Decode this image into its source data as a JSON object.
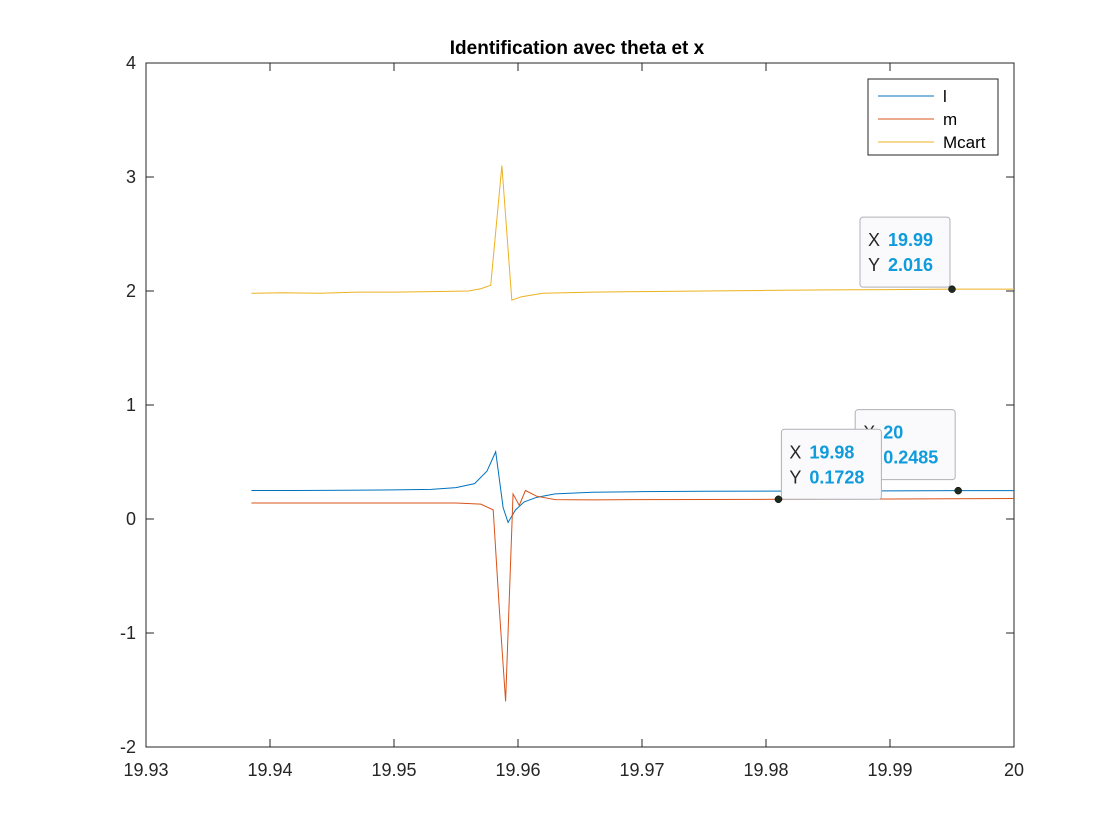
{
  "chart_data": {
    "type": "line",
    "title": "Identification avec theta et x",
    "xlabel": "",
    "ylabel": "",
    "xlim": [
      19.93,
      20
    ],
    "ylim": [
      -2,
      4
    ],
    "x_ticks": [
      "19.93",
      "19.94",
      "19.95",
      "19.96",
      "19.97",
      "19.98",
      "19.99",
      "20"
    ],
    "y_ticks": [
      "-2",
      "-1",
      "0",
      "1",
      "2",
      "3",
      "4"
    ],
    "grid": false,
    "legend_position": "top-right",
    "series": [
      {
        "name": "l",
        "color": "#0072BD",
        "points": [
          [
            19.9385,
            0.25
          ],
          [
            19.942,
            0.25
          ],
          [
            19.946,
            0.252
          ],
          [
            19.95,
            0.255
          ],
          [
            19.953,
            0.26
          ],
          [
            19.955,
            0.275
          ],
          [
            19.9565,
            0.31
          ],
          [
            19.9575,
            0.42
          ],
          [
            19.9582,
            0.59
          ],
          [
            19.9588,
            0.1
          ],
          [
            19.9592,
            -0.03
          ],
          [
            19.9598,
            0.08
          ],
          [
            19.9605,
            0.15
          ],
          [
            19.9615,
            0.19
          ],
          [
            19.963,
            0.22
          ],
          [
            19.966,
            0.235
          ],
          [
            19.97,
            0.24
          ],
          [
            19.975,
            0.243
          ],
          [
            19.98,
            0.245
          ],
          [
            19.985,
            0.246
          ],
          [
            19.99,
            0.247
          ],
          [
            19.9955,
            0.2485
          ],
          [
            20.0,
            0.2485
          ]
        ]
      },
      {
        "name": "m",
        "color": "#D95319",
        "points": [
          [
            19.9385,
            0.14
          ],
          [
            19.945,
            0.14
          ],
          [
            19.95,
            0.14
          ],
          [
            19.955,
            0.14
          ],
          [
            19.957,
            0.13
          ],
          [
            19.958,
            0.08
          ],
          [
            19.9585,
            -0.8
          ],
          [
            19.959,
            -1.6
          ],
          [
            19.9596,
            0.22
          ],
          [
            19.9601,
            0.12
          ],
          [
            19.9606,
            0.25
          ],
          [
            19.9615,
            0.2
          ],
          [
            19.963,
            0.17
          ],
          [
            19.966,
            0.168
          ],
          [
            19.97,
            0.17
          ],
          [
            19.975,
            0.171
          ],
          [
            19.981,
            0.1728
          ],
          [
            19.985,
            0.174
          ],
          [
            19.99,
            0.176
          ],
          [
            19.995,
            0.178
          ],
          [
            20.0,
            0.18
          ]
        ]
      },
      {
        "name": "Mcart",
        "color": "#EDB120",
        "points": [
          [
            19.9385,
            1.98
          ],
          [
            19.941,
            1.985
          ],
          [
            19.944,
            1.98
          ],
          [
            19.947,
            1.99
          ],
          [
            19.95,
            1.99
          ],
          [
            19.953,
            1.995
          ],
          [
            19.956,
            2.0
          ],
          [
            19.957,
            2.02
          ],
          [
            19.9578,
            2.05
          ],
          [
            19.9587,
            3.1
          ],
          [
            19.9595,
            1.92
          ],
          [
            19.9603,
            1.95
          ],
          [
            19.962,
            1.98
          ],
          [
            19.966,
            1.99
          ],
          [
            19.97,
            1.995
          ],
          [
            19.975,
            2.0
          ],
          [
            19.98,
            2.005
          ],
          [
            19.985,
            2.01
          ],
          [
            19.99,
            2.012
          ],
          [
            19.995,
            2.016
          ],
          [
            20.0,
            2.016
          ]
        ]
      }
    ],
    "datatips": [
      {
        "x": 19.995,
        "y": 2.016,
        "x_label": "X",
        "x_value": "19.99",
        "y_label": "Y",
        "y_value": "2.016"
      },
      {
        "x": 19.9955,
        "y": 0.2485,
        "x_label": "X",
        "x_value": "20",
        "y_label": "Y",
        "y_value": "0.2485"
      },
      {
        "x": 19.981,
        "y": 0.1728,
        "x_label": "X",
        "x_value": "19.98",
        "y_label": "Y",
        "y_value": "0.1728"
      }
    ]
  }
}
